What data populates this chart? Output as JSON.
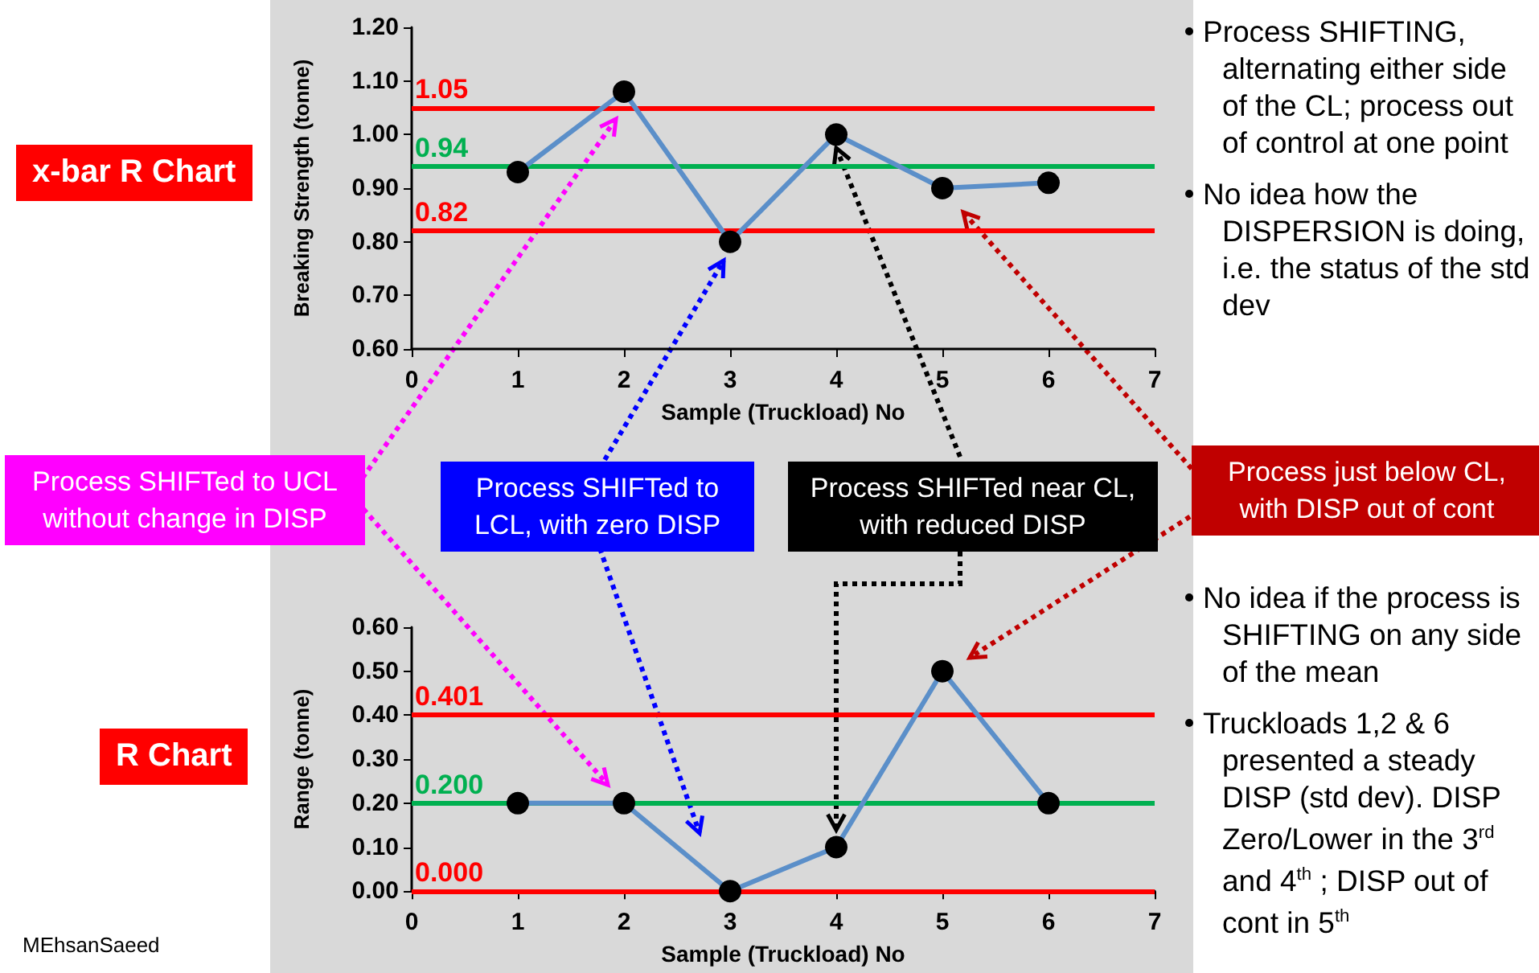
{
  "chart_data": [
    {
      "type": "line",
      "title": "x-bar R Chart",
      "xlabel": "Sample (Truckload) No",
      "ylabel": "Breaking Strength (tonne)",
      "x": [
        1,
        2,
        3,
        4,
        5,
        6
      ],
      "series": [
        {
          "color": "#5b8fc9",
          "values": [
            0.93,
            1.08,
            0.8,
            1.0,
            0.9,
            0.91
          ]
        }
      ],
      "marker": "circle",
      "xlim": [
        0,
        7
      ],
      "xticks": [
        0,
        1,
        2,
        3,
        4,
        5,
        6,
        7
      ],
      "ylim": [
        0.6,
        1.2
      ],
      "yticks": [
        {
          "value": 0.6,
          "label": "0.60"
        },
        {
          "value": 0.7,
          "label": "0.70"
        },
        {
          "value": 0.8,
          "label": "0.80"
        },
        {
          "value": 0.9,
          "label": "0.90"
        },
        {
          "value": 1.0,
          "label": "1.00"
        },
        {
          "value": 1.1,
          "label": "1.10"
        },
        {
          "value": 1.2,
          "label": "1.20"
        }
      ],
      "ref_lines": [
        {
          "axis": "y",
          "value": 1.05,
          "label": "1.05",
          "color": "#ff0000"
        },
        {
          "axis": "y",
          "value": 0.94,
          "label": "0.94",
          "color": "#00b050"
        },
        {
          "axis": "y",
          "value": 0.82,
          "label": "0.82",
          "color": "#ff0000"
        }
      ],
      "annotations": [
        "Process SHIFTING, alternating either side of the CL; process out of control at one point",
        "No idea how the DISPERSION is doing, i.e. the status of the std dev",
        "Process SHIFTed to UCL without change in DISP",
        "Process SHIFTed to LCL,  with zero DISP",
        "Process SHIFTed near CL,  with reduced DISP",
        "Process just below CL, with DISP out of cont"
      ]
    },
    {
      "type": "line",
      "title": "R Chart",
      "xlabel": "Sample (Truckload) No",
      "ylabel": "Range (tonne)",
      "x": [
        1,
        2,
        3,
        4,
        5,
        6
      ],
      "series": [
        {
          "color": "#5b8fc9",
          "values": [
            0.2,
            0.2,
            0.0,
            0.1,
            0.5,
            0.2
          ]
        }
      ],
      "marker": "circle",
      "xlim": [
        0,
        7
      ],
      "xticks": [
        0,
        1,
        2,
        3,
        4,
        5,
        6,
        7
      ],
      "ylim": [
        0,
        0.6
      ],
      "yticks": [
        {
          "value": 0,
          "label": "0.00"
        },
        {
          "value": 0.1,
          "label": "0.10"
        },
        {
          "value": 0.2,
          "label": "0.20"
        },
        {
          "value": 0.3,
          "label": "0.30"
        },
        {
          "value": 0.4,
          "label": "0.40"
        },
        {
          "value": 0.5,
          "label": "0.50"
        },
        {
          "value": 0.6,
          "label": "0.60"
        }
      ],
      "ref_lines": [
        {
          "axis": "y",
          "value": 0.401,
          "label": "0.401",
          "color": "#ff0000"
        },
        {
          "axis": "y",
          "value": 0.2,
          "label": "0.200",
          "color": "#00b050"
        },
        {
          "axis": "y",
          "value": 0,
          "label": "0.000",
          "color": "#ff0000"
        }
      ],
      "annotations": [
        "No idea if the process is SHIFTING on any side of the mean",
        "Truckloads 1,2 & 6 presented a steady DISP (std dev).  DISP Zero/Lower in the 3$^{rd}$ and 4$^{th}$ ; DISP out of cont in 5$^{th}$",
        "MEhsanSaeed"
      ]
    }
  ]
}
